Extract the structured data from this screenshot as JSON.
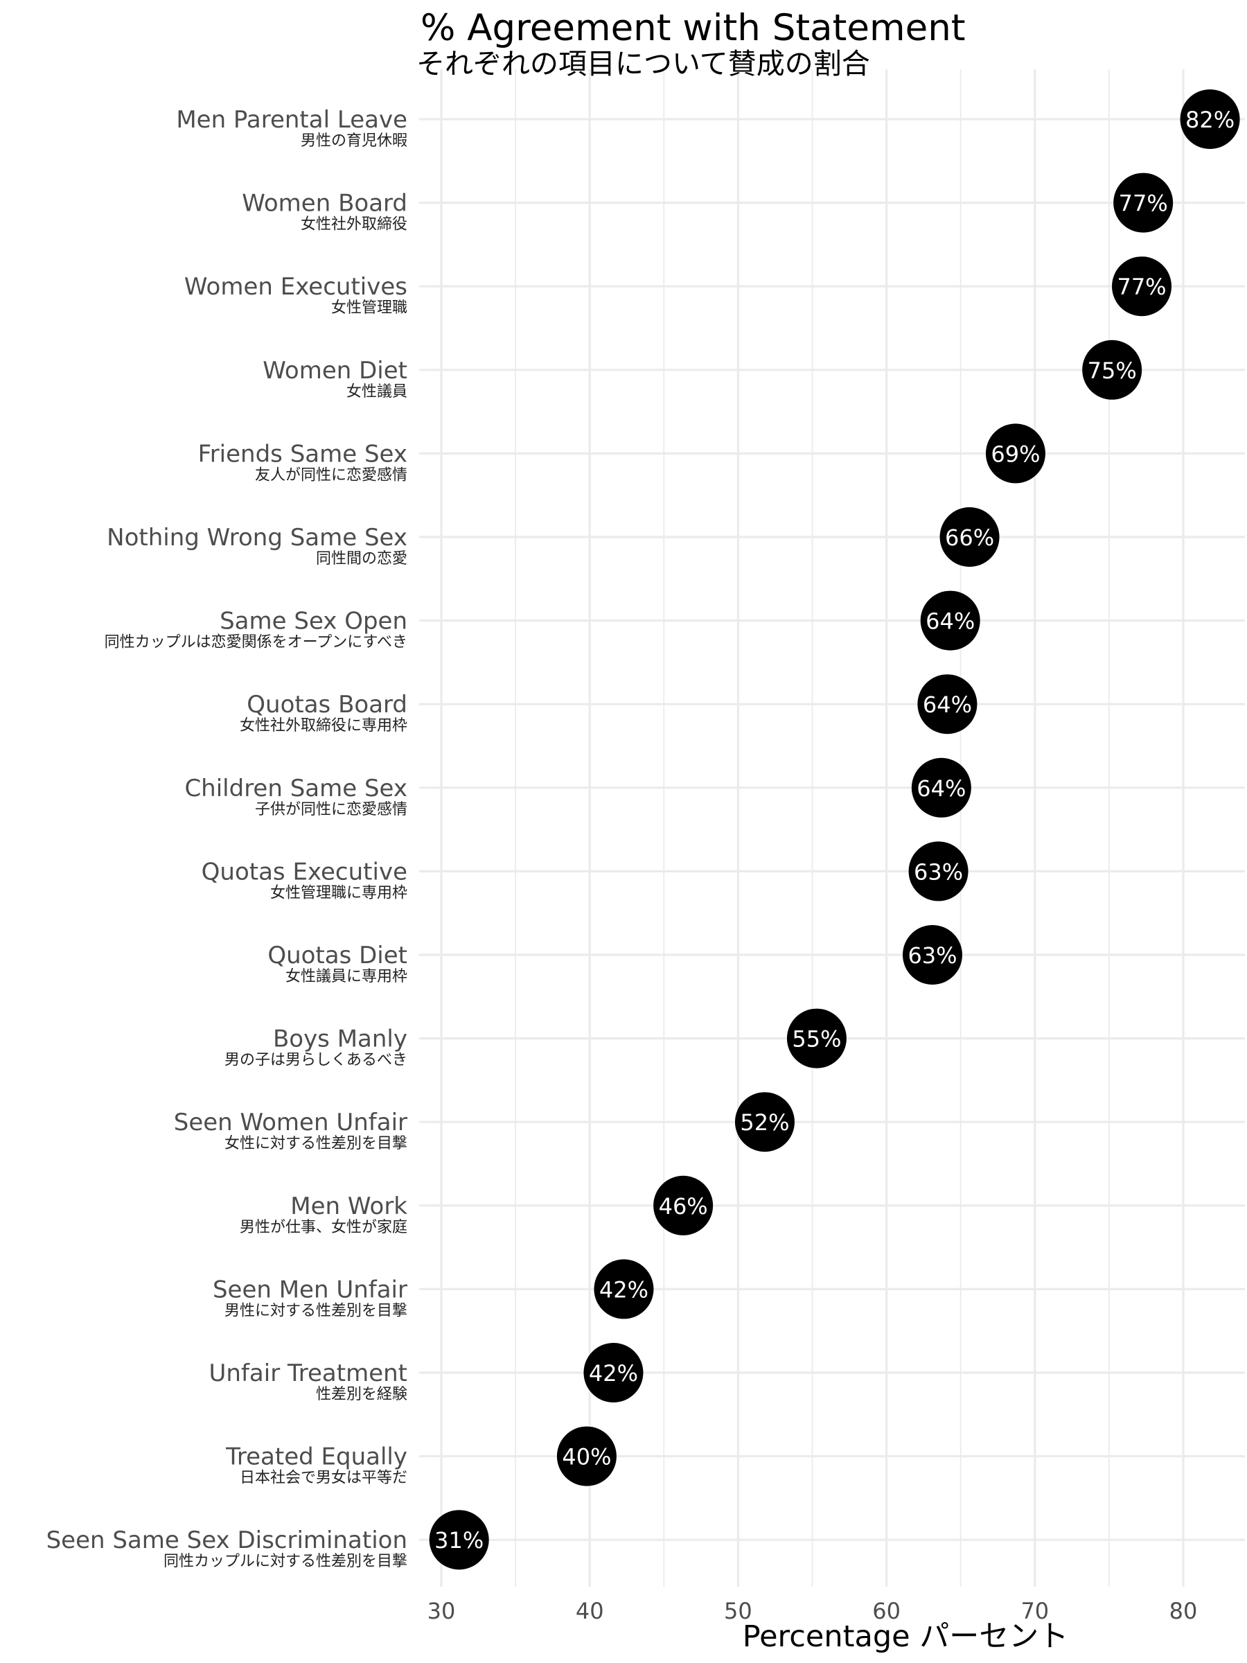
{
  "chart_data": {
    "type": "scatter",
    "title": "% Agreement with Statement",
    "subtitle": "それぞれの項目について賛成の割合",
    "xlabel": "Percentage パーセント",
    "ylabel": "",
    "xlim": [
      29,
      83
    ],
    "xticks": [
      30,
      40,
      50,
      60,
      70,
      80
    ],
    "grid": true,
    "colors": {
      "point": "#000000",
      "point_label": "#ffffff",
      "grid": "#ebebeb",
      "axis_text": "#4d4d4d"
    },
    "points": [
      {
        "label": "Men Parental Leave",
        "label_jp": "男性の育児休暇",
        "value": 81.8,
        "text": "82%"
      },
      {
        "label": "Women Board",
        "label_jp": "女性社外取締役",
        "value": 77.3,
        "text": "77%"
      },
      {
        "label": "Women Executives",
        "label_jp": "女性管理職",
        "value": 77.2,
        "text": "77%"
      },
      {
        "label": "Women Diet",
        "label_jp": "女性議員",
        "value": 75.2,
        "text": "75%"
      },
      {
        "label": "Friends Same Sex",
        "label_jp": "友人が同性に恋愛感情",
        "value": 68.7,
        "text": "69%"
      },
      {
        "label": "Nothing Wrong Same Sex",
        "label_jp": "同性間の恋愛",
        "value": 65.6,
        "text": "66%"
      },
      {
        "label": "Same Sex Open",
        "label_jp": "同性カップルは恋愛関係をオープンにすべき",
        "value": 64.3,
        "text": "64%"
      },
      {
        "label": "Quotas Board",
        "label_jp": "女性社外取締役に専用枠",
        "value": 64.1,
        "text": "64%"
      },
      {
        "label": "Children Same Sex",
        "label_jp": "子供が同性に恋愛感情",
        "value": 63.7,
        "text": "64%"
      },
      {
        "label": "Quotas Executive",
        "label_jp": "女性管理職に専用枠",
        "value": 63.5,
        "text": "63%"
      },
      {
        "label": "Quotas Diet",
        "label_jp": "女性議員に専用枠",
        "value": 63.1,
        "text": "63%"
      },
      {
        "label": "Boys Manly",
        "label_jp": "男の子は男らしくあるべき",
        "value": 55.3,
        "text": "55%"
      },
      {
        "label": "Seen Women Unfair",
        "label_jp": "女性に対する性差別を目撃",
        "value": 51.8,
        "text": "52%"
      },
      {
        "label": "Men Work",
        "label_jp": "男性が仕事、女性が家庭",
        "value": 46.3,
        "text": "46%"
      },
      {
        "label": "Seen Men Unfair",
        "label_jp": "男性に対する性差別を目撃",
        "value": 42.3,
        "text": "42%"
      },
      {
        "label": "Unfair Treatment",
        "label_jp": "性差別を経験",
        "value": 41.6,
        "text": "42%"
      },
      {
        "label": "Treated Equally",
        "label_jp": "日本社会で男女は平等だ",
        "value": 39.8,
        "text": "40%"
      },
      {
        "label": "Seen Same Sex Discrimination",
        "label_jp": "同性カップルに対する性差別を目撃",
        "value": 31.2,
        "text": "31%"
      }
    ]
  }
}
